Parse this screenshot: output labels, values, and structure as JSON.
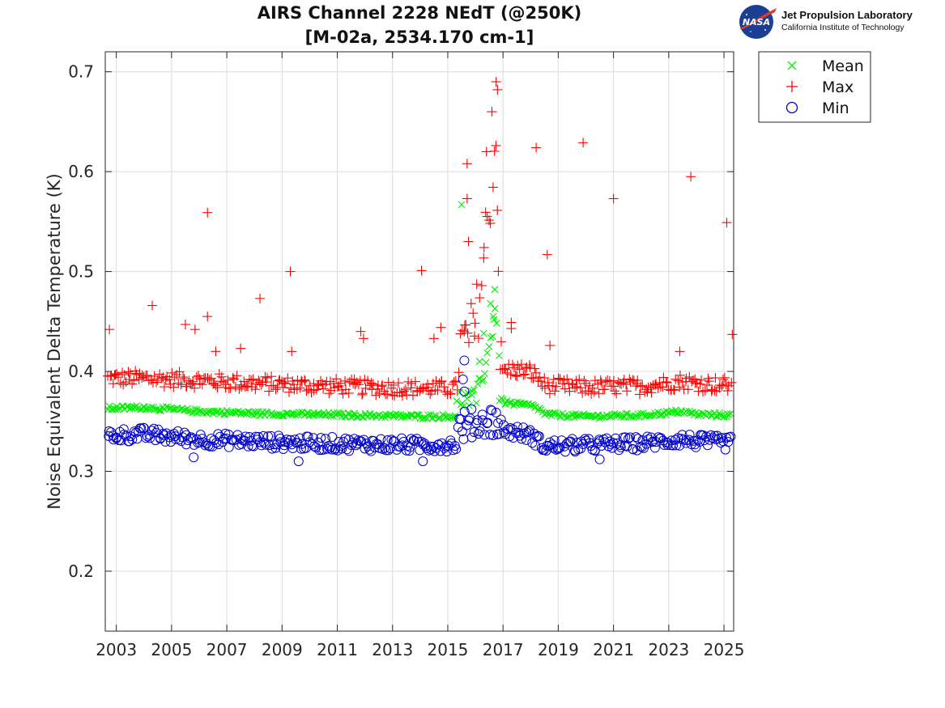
{
  "title": {
    "line1": "AIRS Channel 2228 NEdT (@250K)",
    "line2": "[M-02a, 2534.170 cm-1]"
  },
  "logo": {
    "badge_text": "NASA",
    "org_name": "Jet Propulsion Laboratory",
    "org_sub": "California Institute of Technology"
  },
  "colors": {
    "mean": "#00ee00",
    "max": "#ff0000",
    "min": "#0000cc",
    "grid": "#dcdcdc",
    "axis": "#262626",
    "nasa_blue": "#1b3f94",
    "nasa_red": "#e03a2e"
  },
  "chart_data": {
    "type": "scatter",
    "title": "AIRS Channel 2228 NEdT (@250K)",
    "subtitle": "[M-02a, 2534.170 cm-1]",
    "xlabel": "",
    "ylabel": "Noise Equivalent Delta Temperature (K)",
    "xlim": [
      2002.6,
      2025.35
    ],
    "ylim": [
      0.14,
      0.72
    ],
    "xticks": [
      2003,
      2005,
      2007,
      2009,
      2011,
      2013,
      2015,
      2017,
      2019,
      2021,
      2023,
      2025
    ],
    "yticks": [
      0.2,
      0.3,
      0.4,
      0.5,
      0.6,
      0.7
    ],
    "grid": true,
    "legend_position": "outside-top-right",
    "series": [
      {
        "name": "Mean",
        "marker": "x",
        "color": "#00ee00",
        "baseline": [
          [
            2002.7,
            0.363
          ],
          [
            2004.0,
            0.364
          ],
          [
            2006.0,
            0.36
          ],
          [
            2008.0,
            0.358
          ],
          [
            2010.0,
            0.357
          ],
          [
            2012.0,
            0.356
          ],
          [
            2014.0,
            0.355
          ],
          [
            2015.3,
            0.355
          ],
          [
            2015.4,
            0.372
          ],
          [
            2016.0,
            0.372
          ],
          [
            2016.5,
            0.42
          ],
          [
            2016.75,
            0.47
          ],
          [
            2016.9,
            0.37
          ],
          [
            2017.3,
            0.368
          ],
          [
            2018.0,
            0.366
          ],
          [
            2018.35,
            0.362
          ],
          [
            2018.5,
            0.357
          ],
          [
            2020.0,
            0.355
          ],
          [
            2022.0,
            0.356
          ],
          [
            2023.5,
            0.36
          ],
          [
            2024.0,
            0.357
          ],
          [
            2025.3,
            0.356
          ]
        ],
        "outliers": [
          [
            2015.5,
            0.567
          ],
          [
            2016.55,
            0.468
          ],
          [
            2016.7,
            0.482
          ],
          [
            2016.65,
            0.455
          ],
          [
            2016.3,
            0.438
          ],
          [
            2016.15,
            0.41
          ]
        ]
      },
      {
        "name": "Max",
        "marker": "+",
        "color": "#ff0000",
        "baseline": [
          [
            2002.7,
            0.393
          ],
          [
            2004.0,
            0.393
          ],
          [
            2006.0,
            0.391
          ],
          [
            2008.0,
            0.388
          ],
          [
            2010.0,
            0.386
          ],
          [
            2012.0,
            0.384
          ],
          [
            2014.0,
            0.383
          ],
          [
            2015.3,
            0.383
          ],
          [
            2015.4,
            0.42
          ],
          [
            2016.0,
            0.44
          ],
          [
            2016.5,
            0.56
          ],
          [
            2016.75,
            0.64
          ],
          [
            2016.9,
            0.4
          ],
          [
            2017.3,
            0.402
          ],
          [
            2018.0,
            0.4
          ],
          [
            2018.35,
            0.392
          ],
          [
            2018.5,
            0.386
          ],
          [
            2020.0,
            0.384
          ],
          [
            2022.0,
            0.385
          ],
          [
            2023.5,
            0.39
          ],
          [
            2024.0,
            0.388
          ],
          [
            2025.3,
            0.386
          ]
        ],
        "outliers": [
          [
            2002.75,
            0.442
          ],
          [
            2004.3,
            0.466
          ],
          [
            2005.5,
            0.447
          ],
          [
            2005.85,
            0.442
          ],
          [
            2006.3,
            0.559
          ],
          [
            2006.3,
            0.455
          ],
          [
            2006.6,
            0.42
          ],
          [
            2007.5,
            0.423
          ],
          [
            2008.2,
            0.473
          ],
          [
            2009.3,
            0.5
          ],
          [
            2009.35,
            0.42
          ],
          [
            2011.85,
            0.44
          ],
          [
            2011.95,
            0.433
          ],
          [
            2014.05,
            0.501
          ],
          [
            2014.5,
            0.433
          ],
          [
            2014.75,
            0.444
          ],
          [
            2015.7,
            0.608
          ],
          [
            2015.7,
            0.573
          ],
          [
            2015.75,
            0.53
          ],
          [
            2016.4,
            0.62
          ],
          [
            2016.6,
            0.66
          ],
          [
            2016.75,
            0.69
          ],
          [
            2016.8,
            0.682
          ],
          [
            2017.3,
            0.449
          ],
          [
            2017.3,
            0.443
          ],
          [
            2018.2,
            0.624
          ],
          [
            2018.6,
            0.517
          ],
          [
            2018.7,
            0.426
          ],
          [
            2019.9,
            0.629
          ],
          [
            2021.0,
            0.573
          ],
          [
            2023.8,
            0.595
          ],
          [
            2023.4,
            0.42
          ],
          [
            2025.1,
            0.549
          ],
          [
            2025.3,
            0.437
          ]
        ]
      },
      {
        "name": "Min",
        "marker": "o",
        "color": "#0000cc",
        "baseline": [
          [
            2002.7,
            0.336
          ],
          [
            2004.0,
            0.337
          ],
          [
            2006.0,
            0.332
          ],
          [
            2008.0,
            0.33
          ],
          [
            2010.0,
            0.328
          ],
          [
            2012.0,
            0.327
          ],
          [
            2014.0,
            0.326
          ],
          [
            2015.3,
            0.327
          ],
          [
            2015.4,
            0.345
          ],
          [
            2016.0,
            0.348
          ],
          [
            2016.5,
            0.35
          ],
          [
            2016.75,
            0.352
          ],
          [
            2016.9,
            0.342
          ],
          [
            2017.3,
            0.34
          ],
          [
            2018.0,
            0.336
          ],
          [
            2018.35,
            0.328
          ],
          [
            2018.5,
            0.325
          ],
          [
            2020.0,
            0.326
          ],
          [
            2022.0,
            0.328
          ],
          [
            2023.5,
            0.332
          ],
          [
            2024.0,
            0.33
          ],
          [
            2025.3,
            0.328
          ]
        ],
        "outliers": [
          [
            2015.6,
            0.411
          ],
          [
            2015.55,
            0.392
          ],
          [
            2015.6,
            0.38
          ],
          [
            2009.6,
            0.31
          ],
          [
            2014.1,
            0.31
          ],
          [
            2005.8,
            0.314
          ],
          [
            2020.5,
            0.312
          ]
        ]
      }
    ]
  }
}
